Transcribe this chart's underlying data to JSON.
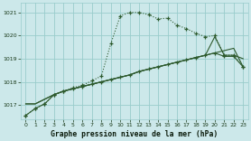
{
  "title": "Graphe pression niveau de la mer (hPa)",
  "bg_color": "#cce8ea",
  "grid_color": "#99cccc",
  "line_color": "#2d5a2d",
  "ylim": [
    1016.4,
    1021.4
  ],
  "xlim": [
    -0.5,
    23.5
  ],
  "yticks": [
    1017,
    1018,
    1019,
    1020,
    1021
  ],
  "xticks": [
    0,
    1,
    2,
    3,
    4,
    5,
    6,
    7,
    8,
    9,
    10,
    11,
    12,
    13,
    14,
    15,
    16,
    17,
    18,
    19,
    20,
    21,
    22,
    23
  ],
  "s1_x": [
    0,
    1,
    2,
    3,
    4,
    5,
    6,
    7,
    8,
    9,
    10,
    11,
    12,
    13,
    14,
    15,
    16,
    17,
    18,
    19,
    20,
    21,
    22,
    23
  ],
  "s1_y": [
    1016.55,
    1016.85,
    1017.05,
    1017.45,
    1017.6,
    1017.75,
    1017.85,
    1018.05,
    1018.25,
    1019.65,
    1020.85,
    1021.0,
    1021.0,
    1020.9,
    1020.72,
    1020.75,
    1020.45,
    1020.3,
    1020.1,
    1019.95,
    1020.0,
    1019.15,
    1019.15,
    1018.65
  ],
  "s2_x": [
    0,
    1,
    2,
    3,
    4,
    5,
    6,
    7,
    8,
    9,
    10,
    11,
    12,
    13,
    14,
    15,
    16,
    17,
    18,
    19,
    20,
    21,
    22,
    23
  ],
  "s2_y": [
    1017.05,
    1017.05,
    1017.25,
    1017.45,
    1017.6,
    1017.7,
    1017.8,
    1017.9,
    1018.0,
    1018.1,
    1018.2,
    1018.3,
    1018.45,
    1018.55,
    1018.65,
    1018.75,
    1018.85,
    1018.95,
    1019.05,
    1019.15,
    1019.25,
    1019.35,
    1019.45,
    1018.65
  ],
  "s3_x": [
    0,
    1,
    2,
    3,
    4,
    5,
    6,
    7,
    8,
    9,
    10,
    11,
    12,
    13,
    14,
    15,
    16,
    17,
    18,
    19,
    20,
    21,
    22,
    23
  ],
  "s3_y": [
    1017.05,
    1017.05,
    1017.25,
    1017.45,
    1017.6,
    1017.7,
    1017.8,
    1017.9,
    1018.0,
    1018.1,
    1018.2,
    1018.3,
    1018.45,
    1018.55,
    1018.65,
    1018.75,
    1018.85,
    1018.95,
    1019.05,
    1019.15,
    1019.95,
    1019.15,
    1019.15,
    1019.0
  ],
  "s4_x": [
    0,
    1,
    2,
    3,
    4,
    5,
    6,
    7,
    8,
    9,
    10,
    11,
    12,
    13,
    14,
    15,
    16,
    17,
    18,
    19,
    20,
    21,
    22,
    23
  ],
  "s4_y": [
    1016.55,
    1016.85,
    1017.05,
    1017.45,
    1017.6,
    1017.7,
    1017.8,
    1017.9,
    1018.0,
    1018.1,
    1018.2,
    1018.3,
    1018.45,
    1018.55,
    1018.65,
    1018.75,
    1018.85,
    1018.95,
    1019.05,
    1019.15,
    1019.25,
    1019.1,
    1019.1,
    1018.65
  ]
}
